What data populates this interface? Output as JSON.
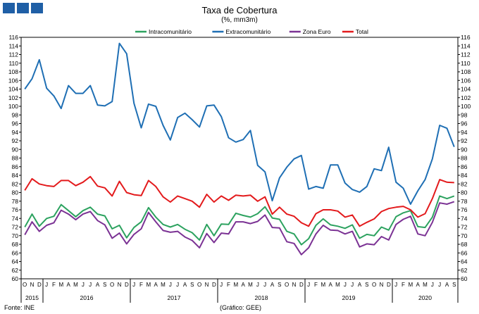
{
  "header": {
    "logo_icon": "ine-logo-icon",
    "title": "Taxa de Cobertura",
    "subtitle": "(%, mm3m)"
  },
  "footer": {
    "source": "Fonte: INE",
    "credit": "(Gráfico: GEE)"
  },
  "chart_data": {
    "type": "line",
    "title": "Taxa de Cobertura",
    "subtitle": "(%, mm3m)",
    "xlabel": "",
    "ylabel": "",
    "ylim": [
      60,
      116
    ],
    "ytick_step": 2,
    "grid": false,
    "legend_position": "top",
    "month_labels": [
      "O",
      "N",
      "D",
      "J",
      "F",
      "M",
      "A",
      "M",
      "J",
      "J",
      "A",
      "S",
      "O",
      "N",
      "D",
      "J",
      "F",
      "M",
      "A",
      "M",
      "J",
      "J",
      "A",
      "S",
      "O",
      "N",
      "D",
      "J",
      "F",
      "M",
      "A",
      "M",
      "J",
      "J",
      "A",
      "S",
      "O",
      "N",
      "D",
      "J",
      "F",
      "M",
      "A",
      "M",
      "J",
      "J",
      "A",
      "S",
      "O",
      "N",
      "D",
      "J",
      "F",
      "M",
      "A",
      "M",
      "J",
      "J",
      "A",
      "S"
    ],
    "year_labels": [
      {
        "label": "2015",
        "start": 0,
        "end": 2
      },
      {
        "label": "2016",
        "start": 3,
        "end": 14
      },
      {
        "label": "2017",
        "start": 15,
        "end": 26
      },
      {
        "label": "2018",
        "start": 27,
        "end": 38
      },
      {
        "label": "2019",
        "start": 39,
        "end": 50
      },
      {
        "label": "2020",
        "start": 51,
        "end": 59
      }
    ],
    "series": [
      {
        "name": "Intracomunitário",
        "color": "#2ca25f",
        "values": [
          72.0,
          75.0,
          72.2,
          74.0,
          74.5,
          77.2,
          75.8,
          74.4,
          75.8,
          76.6,
          75.0,
          74.6,
          71.6,
          72.4,
          69.5,
          71.9,
          73.2,
          76.5,
          74.3,
          72.6,
          72.0,
          72.6,
          71.5,
          70.7,
          69.0,
          72.6,
          70.0,
          72.7,
          72.6,
          75.2,
          74.7,
          74.3,
          75.1,
          76.7,
          74.1,
          73.8,
          71.0,
          70.4,
          67.9,
          69.3,
          72.4,
          73.9,
          72.5,
          72.2,
          71.7,
          72.5,
          69.4,
          70.3,
          70.0,
          72.0,
          71.3,
          74.4,
          75.3,
          75.8,
          72.1,
          71.9,
          74.3,
          79.2,
          78.6,
          79.2
        ]
      },
      {
        "name": "Extracomunitário",
        "color": "#1f6fb4",
        "values": [
          104.0,
          106.4,
          110.8,
          104.2,
          102.4,
          99.5,
          104.8,
          103.0,
          103.0,
          104.8,
          100.3,
          100.1,
          101.1,
          114.6,
          112.2,
          100.7,
          95.0,
          100.5,
          100.0,
          95.6,
          92.2,
          97.4,
          98.4,
          96.9,
          95.2,
          100.1,
          100.3,
          97.6,
          92.7,
          91.7,
          92.3,
          94.4,
          86.3,
          84.8,
          78.1,
          83.4,
          85.9,
          87.8,
          88.6,
          80.8,
          81.4,
          81.0,
          86.4,
          86.4,
          82.2,
          80.7,
          80.1,
          81.4,
          85.5,
          85.1,
          90.5,
          82.4,
          81.0,
          77.3,
          80.4,
          83.0,
          87.8,
          95.6,
          94.9,
          90.6
        ]
      },
      {
        "name": "Zona Euro",
        "color": "#7b3294",
        "values": [
          70.2,
          73.2,
          71.0,
          72.4,
          73.0,
          75.9,
          75.0,
          73.7,
          75.0,
          75.6,
          73.5,
          72.5,
          69.4,
          70.6,
          68.1,
          70.3,
          71.6,
          75.4,
          73.2,
          71.2,
          70.8,
          71.0,
          69.7,
          68.9,
          67.2,
          70.5,
          68.4,
          70.6,
          70.4,
          73.2,
          73.2,
          72.8,
          73.3,
          74.8,
          71.9,
          71.8,
          68.6,
          68.2,
          65.6,
          67.2,
          70.4,
          72.4,
          71.3,
          71.2,
          70.4,
          71.0,
          67.4,
          68.1,
          67.9,
          69.8,
          69.0,
          72.6,
          73.8,
          74.5,
          70.4,
          70.0,
          73.1,
          77.6,
          77.3,
          77.9
        ]
      },
      {
        "name": "Total",
        "color": "#e31a1c",
        "values": [
          80.5,
          83.2,
          82.0,
          81.6,
          81.4,
          82.8,
          82.8,
          81.6,
          82.4,
          83.7,
          81.5,
          81.1,
          79.2,
          82.6,
          80.0,
          79.5,
          79.3,
          82.8,
          81.4,
          79.0,
          77.8,
          79.2,
          78.6,
          78.0,
          76.6,
          79.6,
          77.8,
          79.2,
          78.2,
          79.4,
          79.2,
          79.4,
          78.0,
          79.0,
          75.0,
          76.6,
          75.0,
          74.5,
          73.0,
          72.2,
          75.1,
          76.0,
          76.0,
          75.7,
          74.3,
          74.8,
          72.2,
          73.1,
          73.9,
          75.6,
          76.3,
          76.6,
          76.8,
          76.0,
          74.3,
          75.1,
          78.6,
          83.0,
          82.4,
          82.3
        ]
      }
    ]
  }
}
